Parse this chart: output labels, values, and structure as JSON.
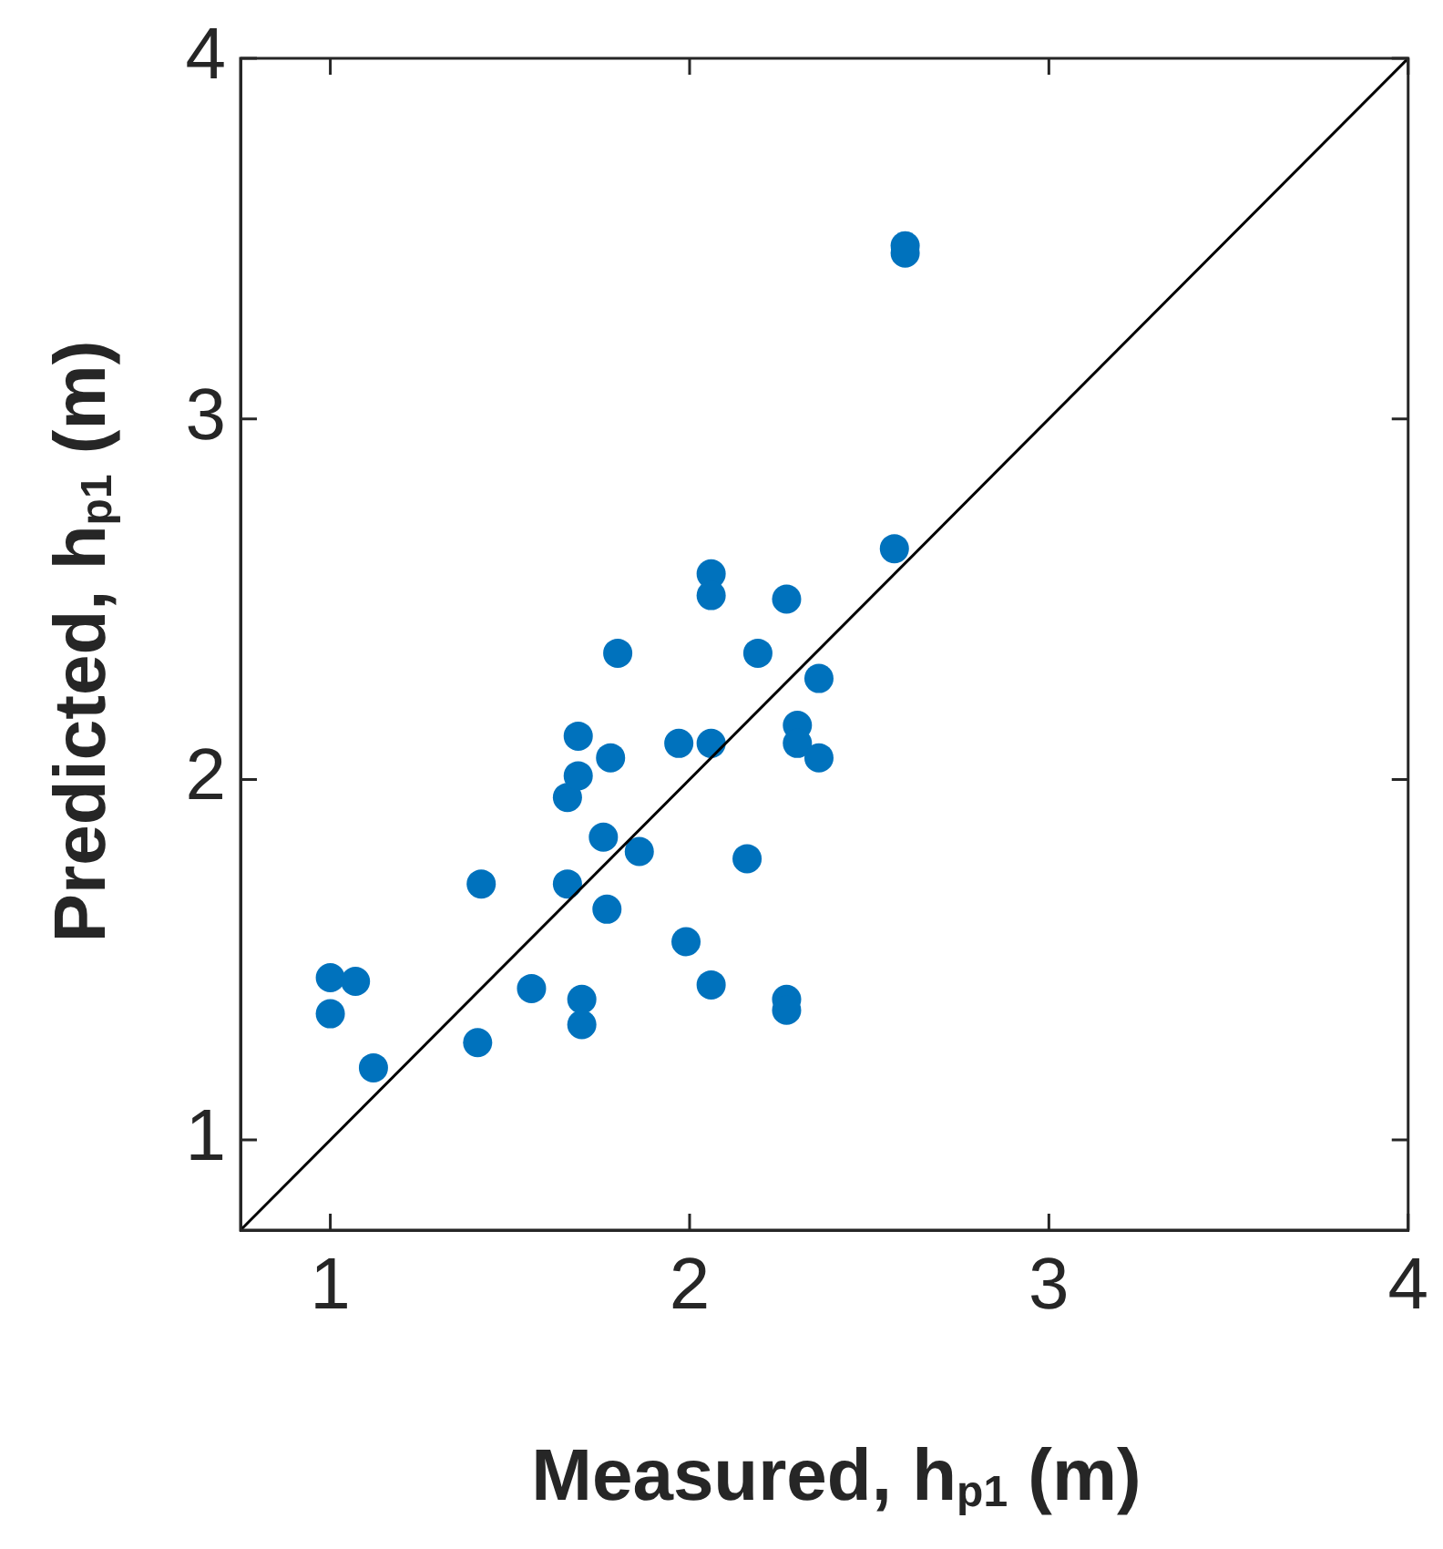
{
  "chart_data": {
    "type": "scatter",
    "xlabel": "Measured, h$_{p1}$ (m)",
    "ylabel": "Predicted, h$_{p1}$ (m)",
    "xlim": [
      0.75,
      4
    ],
    "ylim": [
      0.75,
      4
    ],
    "xticks": [
      1,
      2,
      3,
      4
    ],
    "yticks": [
      1,
      2,
      3,
      4
    ],
    "grid": false,
    "legend": false,
    "marker": "circle",
    "series": [
      {
        "type": "scatter",
        "color": "#0072bd",
        "x": [
          1.0,
          1.07,
          1.0,
          1.12,
          1.42,
          1.41,
          1.56,
          1.7,
          1.7,
          1.66,
          1.66,
          1.69,
          1.69,
          1.78,
          1.8,
          1.76,
          1.77,
          1.86,
          1.97,
          1.99,
          2.06,
          2.06,
          2.06,
          2.06,
          2.16,
          2.19,
          2.27,
          2.27,
          2.27,
          2.3,
          2.3,
          2.36,
          2.36,
          2.57,
          2.6,
          2.6
        ],
        "values": [
          1.45,
          1.44,
          1.35,
          1.2,
          1.71,
          1.27,
          1.42,
          1.39,
          1.32,
          1.71,
          1.95,
          2.01,
          2.12,
          2.06,
          2.35,
          1.84,
          1.64,
          1.8,
          2.1,
          1.55,
          1.43,
          2.1,
          2.57,
          2.51,
          1.78,
          2.35,
          2.5,
          1.39,
          1.36,
          2.15,
          2.1,
          2.28,
          2.06,
          2.64,
          3.48,
          3.46
        ]
      },
      {
        "type": "line",
        "color": "#000000",
        "marker": "none",
        "line_style": "solid",
        "x": [
          0.75,
          4
        ],
        "values": [
          0.75,
          4
        ]
      }
    ]
  }
}
